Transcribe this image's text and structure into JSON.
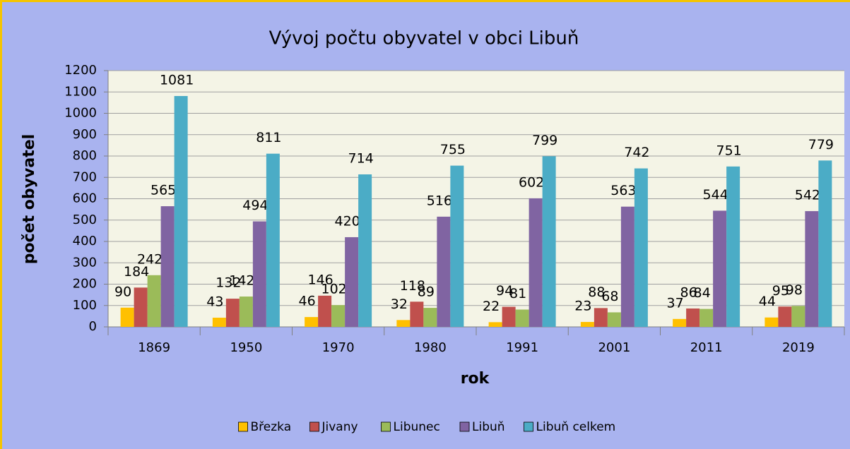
{
  "chart_data": {
    "type": "bar",
    "title": "Vývoj počtu obyvatel v obci Libuň",
    "xlabel": "rok",
    "ylabel": "počet obyvatel",
    "categories": [
      "1869",
      "1950",
      "1970",
      "1980",
      "1991",
      "2001",
      "2011",
      "2019"
    ],
    "series": [
      {
        "name": "Březka",
        "color": "#ffc000",
        "values": [
          90,
          43,
          46,
          32,
          22,
          23,
          37,
          44
        ]
      },
      {
        "name": "Jivany",
        "color": "#c0504d",
        "values": [
          184,
          132,
          146,
          118,
          94,
          88,
          86,
          95
        ]
      },
      {
        "name": "Libunec",
        "color": "#9bbb59",
        "values": [
          242,
          142,
          102,
          89,
          81,
          68,
          84,
          98
        ]
      },
      {
        "name": "Libuň",
        "color": "#8064a2",
        "values": [
          565,
          494,
          420,
          516,
          602,
          563,
          544,
          542
        ]
      },
      {
        "name": "Libuň celkem",
        "color": "#4bacc6",
        "values": [
          1081,
          811,
          714,
          755,
          799,
          742,
          751,
          779
        ]
      }
    ],
    "ylim": [
      0,
      1200
    ],
    "yticks": [
      0,
      100,
      200,
      300,
      400,
      500,
      600,
      700,
      800,
      900,
      1000,
      1100,
      1200
    ],
    "grid": true,
    "legend": "bottom"
  }
}
